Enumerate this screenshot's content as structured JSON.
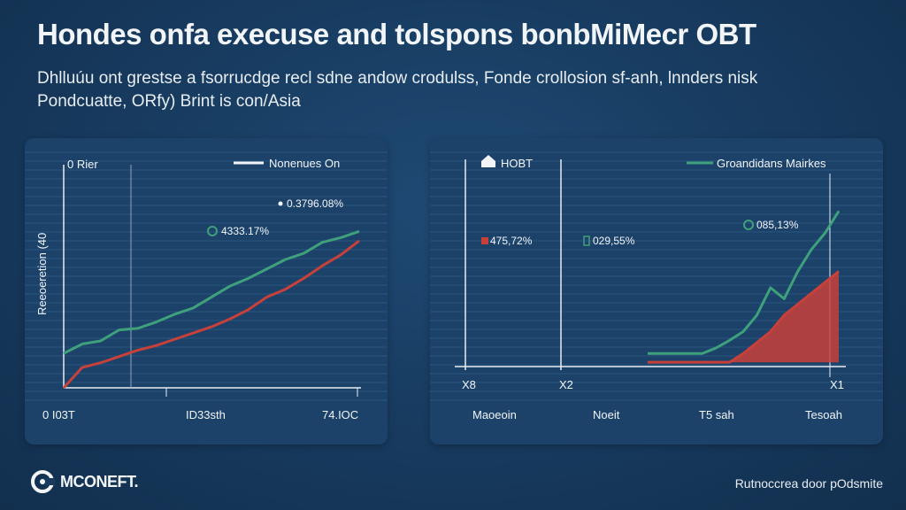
{
  "header": {
    "title": "Hondes onfa execuse and tolspons bonbMiMecr OBT",
    "subtitle_line1": "Dhlluúu ont grestse a fsorrucdge recl sdne andow crodulss, Fonde crollosion sf-anh, lnnders nisk",
    "subtitle_line2": "Pondcuatte, ORfy) Brint is con/Asia"
  },
  "brand": {
    "name": "MCONEFT.",
    "icon": "brand-logo-icon"
  },
  "footer": {
    "text": "Rutnoccrea door pOdsmite"
  },
  "colors": {
    "background": "#173a5e",
    "panel": "#1c426a",
    "green": "#3fa07c",
    "red": "#c8403a"
  },
  "chart_data": [
    {
      "type": "line",
      "title": "",
      "legend_label": "0 Rier",
      "legend_series_label": "Nonenues On",
      "ylabel": "Reeoeretion (40",
      "x_tick_labels": [
        "0 I03T",
        "ID33sth",
        "74.IOC"
      ],
      "grid": true,
      "annotations": [
        {
          "text": "0.3796.08%",
          "marker": "dot"
        },
        {
          "text": "4333.17%",
          "marker": "ring"
        }
      ],
      "series": [
        {
          "name": "Nonenues On",
          "color": "#3fa07c",
          "x": [
            0,
            1,
            2,
            3,
            4,
            5,
            6,
            7,
            8,
            9,
            10,
            11,
            12,
            13,
            14,
            15,
            16
          ],
          "values": [
            2.2,
            2.8,
            3.0,
            3.7,
            3.8,
            4.2,
            4.7,
            5.1,
            5.8,
            6.5,
            7.0,
            7.6,
            8.2,
            8.6,
            9.3,
            9.6,
            10.0
          ]
        },
        {
          "name": "",
          "color": "#c8403a",
          "x": [
            0,
            1,
            2,
            3,
            4,
            5,
            6,
            7,
            8,
            9,
            10,
            11,
            12,
            13,
            14,
            15,
            16
          ],
          "values": [
            0.0,
            1.3,
            1.6,
            2.0,
            2.4,
            2.7,
            3.1,
            3.5,
            3.9,
            4.4,
            5.0,
            5.8,
            6.3,
            7.0,
            7.8,
            8.5,
            9.4
          ]
        }
      ],
      "ylim": [
        0,
        12
      ]
    },
    {
      "type": "area",
      "title": "",
      "legend_label": "HOBT",
      "legend_series_label": "Groandidans Mairkes",
      "x_tick_labels": [
        "X8",
        "X2",
        "X1"
      ],
      "x_category_labels": [
        "Maoeoin",
        "Noeit",
        "T5 sah",
        "Tesoah"
      ],
      "grid": true,
      "annotations": [
        {
          "text": "475,72%",
          "color": "#c8403a",
          "marker": "square"
        },
        {
          "text": "029,55%",
          "color": "#3fa07c",
          "marker": "box"
        },
        {
          "text": "085,13%",
          "color": "#3fa07c",
          "marker": "ring"
        }
      ],
      "series": [
        {
          "name": "Groandidans Mairkes",
          "color": "#3fa07c",
          "x": [
            0,
            1,
            2,
            3,
            4,
            5,
            6,
            7,
            8,
            9,
            10,
            11,
            12,
            13,
            14
          ],
          "values": [
            0,
            0,
            0,
            0,
            0,
            0.5,
            1.2,
            2.0,
            3.5,
            6.0,
            5.0,
            7.5,
            9.5,
            11.0,
            13.0
          ]
        },
        {
          "name": "",
          "color": "#c8403a",
          "x": [
            0,
            1,
            2,
            3,
            4,
            5,
            6,
            7,
            8,
            9,
            10,
            11,
            12,
            13,
            14
          ],
          "values": [
            -0.8,
            -0.8,
            -0.8,
            -0.8,
            -0.8,
            -0.8,
            -0.8,
            0,
            1.0,
            2.0,
            3.5,
            4.5,
            5.5,
            6.5,
            7.5
          ]
        }
      ],
      "ylim": [
        -2,
        14
      ]
    }
  ]
}
